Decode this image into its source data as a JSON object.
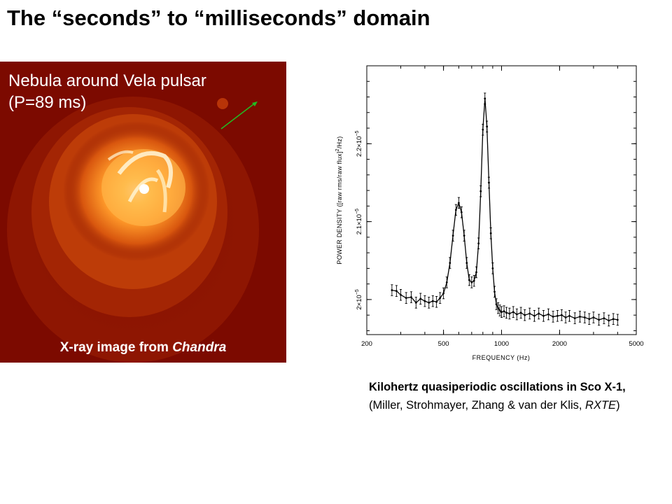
{
  "slide": {
    "title": "The “seconds” to “milliseconds” domain"
  },
  "vela": {
    "label": "Nebula around Vela pulsar\n(P=89 ms)",
    "caption_prefix": "X-ray image from ",
    "caption_source": "Chandra",
    "colors": {
      "background": "#7c0a00",
      "glow": "#ff9a2a",
      "core": "#ffffff",
      "arrow": "#22bb22"
    }
  },
  "chart_data": {
    "type": "line",
    "title": "",
    "xlabel": "FREQUENCY (Hz)",
    "ylabel_parts": {
      "prefix": "POWER DENSITY ([raw rms/raw flux]",
      "sup": "2",
      "suffix": "/Hz)"
    },
    "xscale": "log",
    "xlim": [
      200,
      5000
    ],
    "ylim": [
      1.955e-05,
      2.3e-05
    ],
    "xticks": [
      {
        "value": 200,
        "label": "200"
      },
      {
        "value": 500,
        "label": "500"
      },
      {
        "value": 1000,
        "label": "1000"
      },
      {
        "value": 2000,
        "label": "2000"
      },
      {
        "value": 5000,
        "label": "5000"
      }
    ],
    "yticks": [
      {
        "value": 2e-05,
        "label": "2×10",
        "exp": "−5"
      },
      {
        "value": 2.1e-05,
        "label": "2.1×10",
        "exp": "−5"
      },
      {
        "value": 2.2e-05,
        "label": "2.2×10",
        "exp": "−5"
      }
    ],
    "grid": false,
    "series": [
      {
        "x": [
          270,
          285,
          300,
          320,
          340,
          360,
          380,
          400,
          420,
          440,
          460,
          480,
          500,
          520,
          540,
          560,
          580,
          600,
          620,
          640,
          660,
          680,
          700,
          720,
          740,
          760,
          780,
          800,
          820,
          840,
          860,
          880,
          900,
          920,
          940,
          960,
          980,
          1000,
          1030,
          1060,
          1100,
          1150,
          1200,
          1260,
          1320,
          1400,
          1480,
          1560,
          1650,
          1750,
          1850,
          1950,
          2050,
          2150,
          2250,
          2400,
          2550,
          2700,
          2850,
          3000,
          3200,
          3400,
          3600,
          3800,
          4000
        ],
        "y": [
          2.012e-05,
          2.011e-05,
          2.006e-05,
          2.002e-05,
          2.003e-05,
          1.996e-05,
          2.001e-05,
          1.998e-05,
          1.996e-05,
          1.998e-05,
          1.997e-05,
          2.002e-05,
          2.008e-05,
          2.022e-05,
          2.047e-05,
          2.082e-05,
          2.115e-05,
          2.124e-05,
          2.112e-05,
          2.082e-05,
          2.047e-05,
          2.025e-05,
          2.022e-05,
          2.024e-05,
          2.035e-05,
          2.072e-05,
          2.139e-05,
          2.218e-05,
          2.258e-05,
          2.222e-05,
          2.15e-05,
          2.085e-05,
          2.04e-05,
          2.01e-05,
          1.994e-05,
          1.989e-05,
          1.986e-05,
          1.984e-05,
          1.985e-05,
          1.983e-05,
          1.982e-05,
          1.984e-05,
          1.981e-05,
          1.983e-05,
          1.98e-05,
          1.982e-05,
          1.979e-05,
          1.982e-05,
          1.979e-05,
          1.981e-05,
          1.978e-05,
          1.979e-05,
          1.98e-05,
          1.977e-05,
          1.979e-05,
          1.976e-05,
          1.978e-05,
          1.977e-05,
          1.975e-05,
          1.977e-05,
          1.974e-05,
          1.976e-05,
          1.973e-05,
          1.975e-05,
          1.974e-05
        ],
        "err": 7e-08
      }
    ]
  },
  "qpo": {
    "caption_bold": "Kilohertz quasiperiodic oscillations in Sco X-1,",
    "caption_plain": " (Miller,  Strohmayer,  Zhang &  van der Klis, ",
    "caption_italic": "RXTE",
    "caption_end": ")"
  }
}
